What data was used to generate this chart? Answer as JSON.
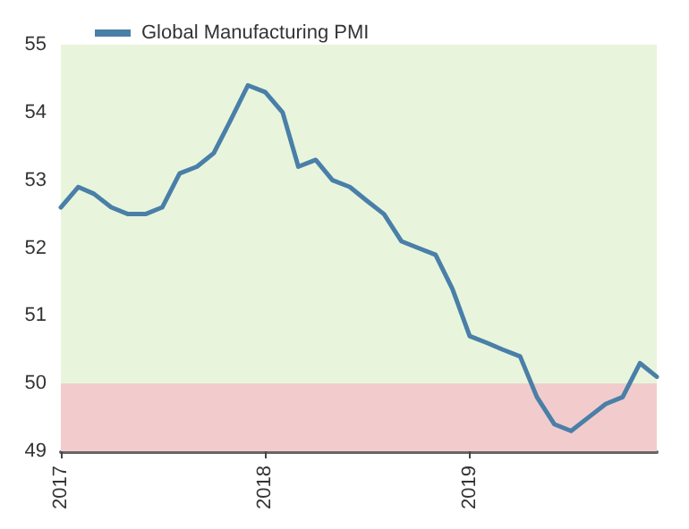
{
  "chart_data": {
    "type": "line",
    "x": [
      "2017-01",
      "2017-02",
      "2017-03",
      "2017-04",
      "2017-05",
      "2017-06",
      "2017-07",
      "2017-08",
      "2017-09",
      "2017-10",
      "2017-11",
      "2017-12",
      "2018-01",
      "2018-02",
      "2018-03",
      "2018-04",
      "2018-05",
      "2018-06",
      "2018-07",
      "2018-08",
      "2018-09",
      "2018-10",
      "2018-11",
      "2018-12",
      "2019-01",
      "2019-02",
      "2019-03",
      "2019-04",
      "2019-05",
      "2019-06",
      "2019-07",
      "2019-08",
      "2019-09",
      "2019-10",
      "2019-11",
      "2019-12"
    ],
    "series": [
      {
        "name": "Global Manufacturing PMI",
        "color": "#4a7fa8",
        "values": [
          52.6,
          52.9,
          52.8,
          52.6,
          52.5,
          52.5,
          52.6,
          53.1,
          53.2,
          53.4,
          53.9,
          54.4,
          54.3,
          54.0,
          53.2,
          53.3,
          53.0,
          52.9,
          52.7,
          52.5,
          52.1,
          52.0,
          51.9,
          51.4,
          50.7,
          50.6,
          50.5,
          50.4,
          49.8,
          49.4,
          49.3,
          49.5,
          49.7,
          49.8,
          50.3,
          50.1
        ]
      }
    ],
    "xlim": [
      "2017-01",
      "2019-12"
    ],
    "xticks": [
      "2017",
      "2018",
      "2019"
    ],
    "ylim": [
      49,
      55
    ],
    "yticks": [
      49,
      50,
      51,
      52,
      53,
      54,
      55
    ],
    "bands": [
      {
        "axis": "y",
        "from": 50,
        "to": 55,
        "color": "#e8f5dc"
      },
      {
        "axis": "y",
        "from": 49,
        "to": 50,
        "color": "#f2cccc"
      }
    ],
    "grid": "y",
    "legend": "top left",
    "marker": "none",
    "line_style": "solid"
  }
}
